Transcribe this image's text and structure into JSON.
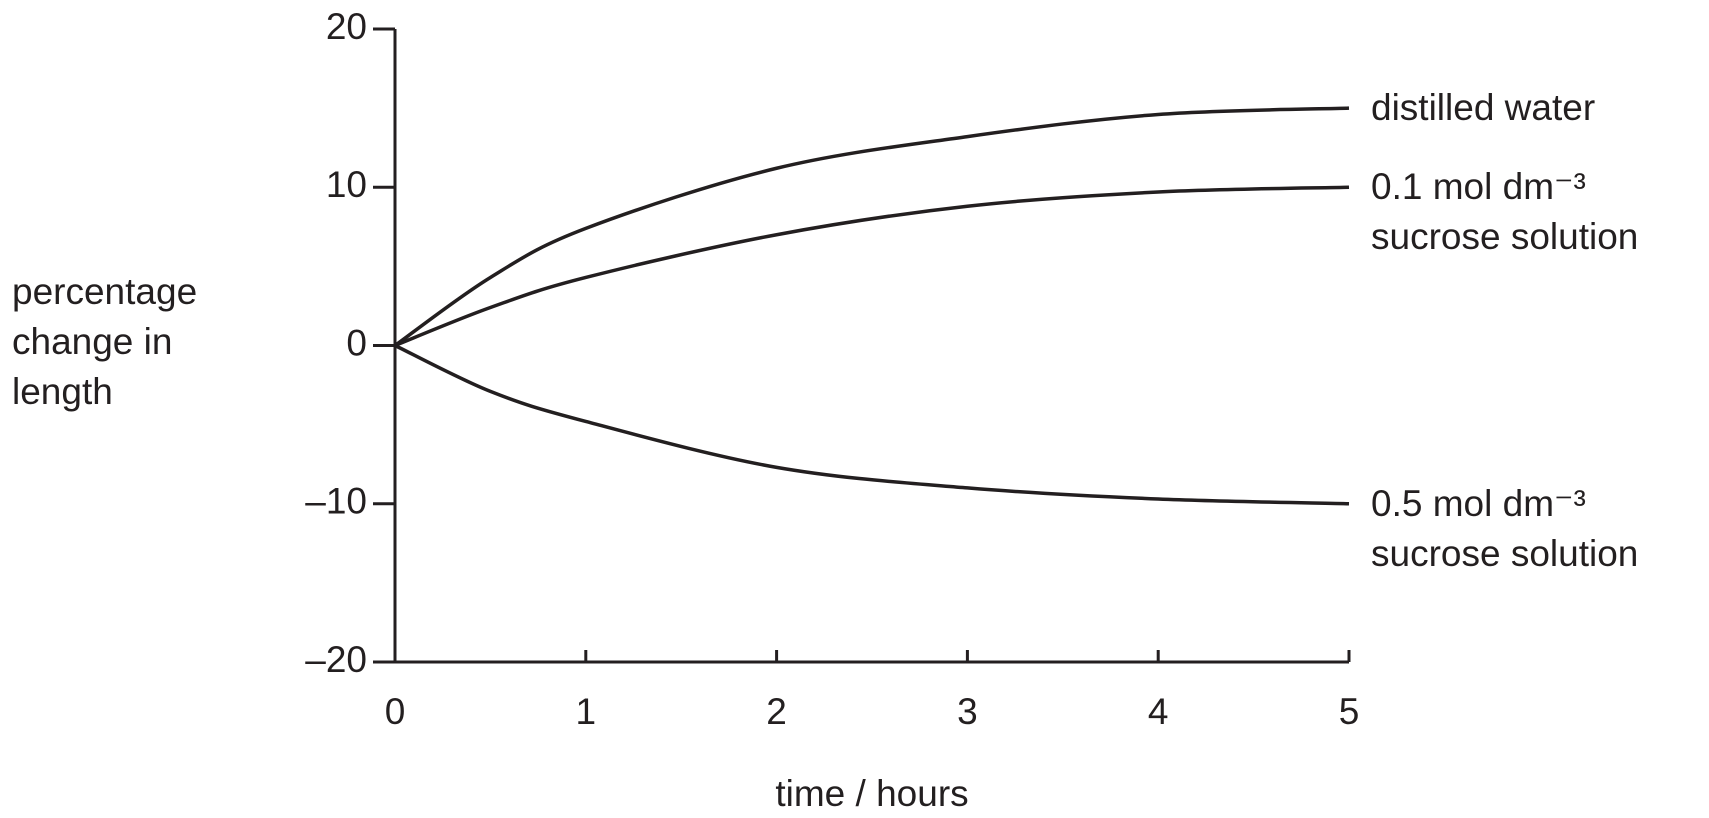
{
  "chart_data": {
    "type": "line",
    "x_label": "time / hours",
    "y_label": "percentage change in length",
    "x": [
      0,
      0.5,
      1,
      2,
      3,
      4,
      5
    ],
    "series": [
      {
        "name": "distilled water",
        "color": "#231f20",
        "values": [
          0,
          4.3,
          7.4,
          11.2,
          13.2,
          14.6,
          15
        ]
      },
      {
        "name": "0.1 mol dm⁻³ sucrose solution",
        "color": "#231f20",
        "values": [
          0,
          2.4,
          4.3,
          7.0,
          8.8,
          9.7,
          10
        ]
      },
      {
        "name": "0.5 mol dm⁻³ sucrose solution",
        "color": "#231f20",
        "values": [
          0,
          -2.9,
          -4.8,
          -7.7,
          -9.0,
          -9.7,
          -10
        ]
      }
    ],
    "xlim": [
      0,
      5
    ],
    "xticks": [
      0,
      1,
      2,
      3,
      4,
      5
    ],
    "ylim": [
      -20,
      20
    ],
    "yticks": [
      {
        "value": -20,
        "label": "–20"
      },
      {
        "value": -10,
        "label": "–10"
      },
      0,
      10,
      20
    ]
  }
}
